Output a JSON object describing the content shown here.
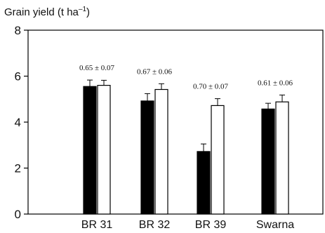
{
  "chart_data": {
    "type": "bar",
    "ylabel": {
      "main": "Grain yield (t ha",
      "sup": "–1",
      "close": ")"
    },
    "ylim": [
      0,
      8
    ],
    "yticks": [
      0,
      2,
      4,
      6,
      8
    ],
    "categories": [
      "BR 31",
      "BR 32",
      "BR 39",
      "Swarna"
    ],
    "series": [
      {
        "fill": "#000000",
        "values": [
          5.55,
          4.92,
          2.72,
          4.57
        ],
        "errors": [
          0.28,
          0.32,
          0.33,
          0.25
        ]
      },
      {
        "fill": "#ffffff",
        "values": [
          5.6,
          5.42,
          4.72,
          4.88
        ],
        "errors": [
          0.22,
          0.25,
          0.3,
          0.3
        ]
      }
    ],
    "annotations": [
      "0.65 ± 0.07",
      "0.67 ± 0.06",
      "0.70 ± 0.07",
      "0.61 ± 0.06"
    ],
    "grid": false,
    "legend": "none"
  }
}
